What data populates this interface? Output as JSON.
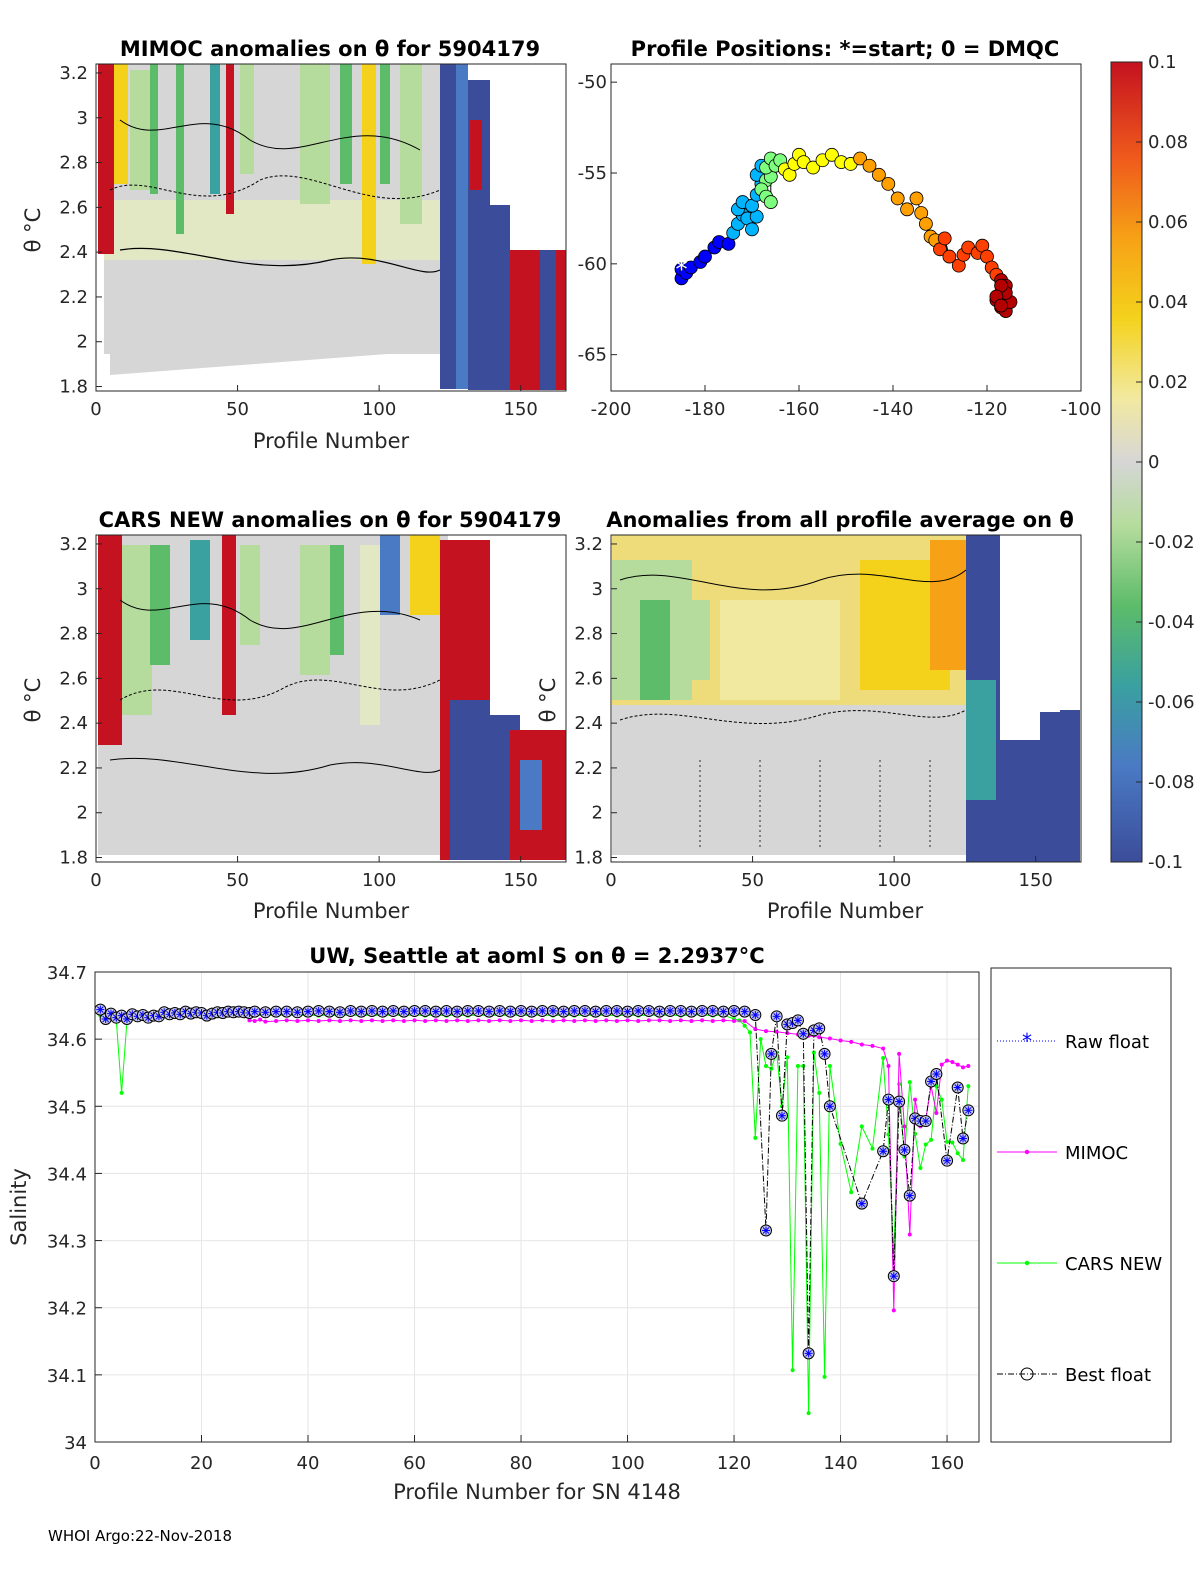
{
  "footer": "WHOI Argo:22-Nov-2018",
  "colors": {
    "raw": "#0000ff",
    "mimoc": "#ff00ff",
    "cars": "#00ff00",
    "best": "#000000",
    "grid": "#e6e6e6",
    "anom_neutral": "#d6d6d6"
  },
  "chart_data": [
    {
      "type": "heatmap",
      "id": "mimoc",
      "title": "MIMOC anomalies on θ  for 5904179",
      "xlabel": "Profile Number",
      "ylabel": "θ °C",
      "xlim": [
        0,
        166
      ],
      "ylim": [
        1.78,
        3.24
      ],
      "xticks": [
        "0",
        "50",
        "100",
        "150"
      ],
      "yticks": [
        "1.8",
        "2",
        "2.2",
        "2.4",
        "2.6",
        "2.8",
        "3",
        "3.2"
      ]
    },
    {
      "type": "scatter",
      "id": "positions",
      "title": "Profile Positions: *=start; 0 = DMQC",
      "xlim": [
        -200,
        -100
      ],
      "ylim": [
        -67,
        -49
      ],
      "xticks": [
        "-200",
        "-180",
        "-160",
        "-140",
        "-120",
        "-100"
      ],
      "yticks": [
        "-50",
        "-55",
        "-60",
        "-65"
      ],
      "lon": [
        -185,
        -185,
        -184,
        -183,
        -181,
        -180,
        -178,
        -177,
        -175,
        -174,
        -173,
        -172,
        -173,
        -172,
        -171,
        -170,
        -169,
        -170,
        -169,
        -168,
        -169,
        -168,
        -167,
        -168,
        -167,
        -166,
        -166,
        -167,
        -166,
        -165,
        -164,
        -163,
        -162,
        -161,
        -160,
        -159,
        -157,
        -155,
        -153,
        -151,
        -149,
        -147,
        -145,
        -143,
        -141,
        -139,
        -137,
        -135,
        -134,
        -133,
        -132,
        -131,
        -130,
        -129,
        -128,
        -126,
        -125,
        -124,
        -122,
        -121,
        -120,
        -119,
        -118,
        -117,
        -116,
        -117,
        -118,
        -117,
        -116,
        -115,
        -116,
        -117,
        -118,
        -117
      ],
      "lat": [
        -60.8,
        -60.3,
        -60.5,
        -60.2,
        -59.9,
        -59.6,
        -59.1,
        -58.8,
        -58.9,
        -58.3,
        -57.8,
        -57.3,
        -57.0,
        -56.6,
        -57.5,
        -58.1,
        -57.4,
        -56.8,
        -56.2,
        -55.6,
        -55.1,
        -54.6,
        -55.4,
        -55.9,
        -56.3,
        -56.6,
        -55.2,
        -54.7,
        -54.2,
        -54.6,
        -54.3,
        -54.8,
        -55.1,
        -54.5,
        -54.0,
        -54.4,
        -54.7,
        -54.3,
        -54.0,
        -54.4,
        -54.5,
        -54.2,
        -54.6,
        -55.1,
        -55.6,
        -56.4,
        -57.0,
        -56.4,
        -57.2,
        -57.8,
        -58.5,
        -58.7,
        -59.2,
        -58.6,
        -59.6,
        -60.1,
        -59.5,
        -59.1,
        -59.4,
        -59.0,
        -59.6,
        -60.2,
        -60.6,
        -60.9,
        -61.2,
        -61.6,
        -62.0,
        -62.4,
        -62.6,
        -62.1,
        -61.6,
        -61.2,
        -61.8,
        -62.3
      ],
      "colorbar": {
        "ticks": [
          "0.1",
          "0.08",
          "0.06",
          "0.04",
          "0.02",
          "0",
          "-0.02",
          "-0.04",
          "-0.06",
          "-0.08",
          "-0.1"
        ],
        "range": [
          -0.1,
          0.1
        ]
      }
    },
    {
      "type": "heatmap",
      "id": "cars",
      "title": "CARS NEW anomalies on θ for 5904179",
      "xlabel": "Profile Number",
      "ylabel": "θ °C",
      "xlim": [
        0,
        166
      ],
      "ylim": [
        1.78,
        3.24
      ],
      "xticks": [
        "0",
        "50",
        "100",
        "150"
      ],
      "yticks": [
        "1.8",
        "2",
        "2.2",
        "2.4",
        "2.6",
        "2.8",
        "3",
        "3.2"
      ]
    },
    {
      "type": "heatmap",
      "id": "allavg",
      "title": "Anomalies from all profile average on θ",
      "xlabel": "Profile Number",
      "ylabel": "θ °C",
      "xlim": [
        0,
        166
      ],
      "ylim": [
        1.78,
        3.24
      ],
      "xticks": [
        "0",
        "50",
        "100",
        "150"
      ],
      "yticks": [
        "1.8",
        "2",
        "2.2",
        "2.4",
        "2.6",
        "2.8",
        "3",
        "3.2"
      ]
    },
    {
      "type": "line",
      "id": "salinity",
      "title": "UW, Seattle at aoml S on θ = 2.2937°C",
      "xlabel": "Profile Number for SN 4148",
      "ylabel": "Salinity",
      "xlim": [
        0,
        166
      ],
      "ylim": [
        34,
        34.7
      ],
      "xticks": [
        "0",
        "20",
        "40",
        "60",
        "80",
        "100",
        "120",
        "140",
        "160"
      ],
      "yticks": [
        "34",
        "34.1",
        "34.2",
        "34.3",
        "34.4",
        "34.5",
        "34.6",
        "34.7"
      ],
      "legend": [
        "Raw float",
        "MIMOC",
        "CARS NEW",
        "Best float"
      ],
      "series": [
        {
          "name": "Best float",
          "x": [
            1,
            2,
            3,
            4,
            5,
            6,
            7,
            8,
            9,
            10,
            11,
            12,
            13,
            14,
            15,
            16,
            17,
            18,
            19,
            20,
            21,
            22,
            23,
            24,
            25,
            26,
            27,
            28,
            29,
            30,
            32,
            34,
            36,
            38,
            40,
            42,
            44,
            46,
            48,
            50,
            52,
            54,
            56,
            58,
            60,
            62,
            64,
            66,
            68,
            70,
            72,
            74,
            76,
            78,
            80,
            82,
            84,
            86,
            88,
            90,
            92,
            94,
            96,
            98,
            100,
            102,
            104,
            106,
            108,
            110,
            112,
            114,
            116,
            118,
            120,
            122,
            124,
            126,
            127,
            128,
            129,
            130,
            131,
            132,
            133,
            134,
            135,
            136,
            137,
            138,
            144,
            148,
            149,
            150,
            151,
            152,
            153,
            154,
            155,
            156,
            157,
            158,
            160,
            162,
            163,
            164
          ],
          "y": [
            34.644,
            34.63,
            34.638,
            34.632,
            34.635,
            34.63,
            34.637,
            34.634,
            34.636,
            34.632,
            34.635,
            34.634,
            34.64,
            34.637,
            34.639,
            34.637,
            34.641,
            34.638,
            34.64,
            34.639,
            34.635,
            34.638,
            34.64,
            34.639,
            34.641,
            34.64,
            34.641,
            34.64,
            34.639,
            34.641,
            34.64,
            34.641,
            34.641,
            34.64,
            34.641,
            34.642,
            34.641,
            34.64,
            34.642,
            34.641,
            34.642,
            34.641,
            34.642,
            34.641,
            34.642,
            34.642,
            34.641,
            34.642,
            34.641,
            34.642,
            34.642,
            34.641,
            34.642,
            34.641,
            34.642,
            34.641,
            34.642,
            34.642,
            34.641,
            34.642,
            34.642,
            34.641,
            34.642,
            34.642,
            34.641,
            34.642,
            34.642,
            34.641,
            34.642,
            34.642,
            34.641,
            34.642,
            34.642,
            34.641,
            34.642,
            34.641,
            34.636,
            34.315,
            34.578,
            34.634,
            34.486,
            34.622,
            34.624,
            34.628,
            34.608,
            34.132,
            34.613,
            34.616,
            34.578,
            34.5,
            34.355,
            34.433,
            34.51,
            34.247,
            34.507,
            34.435,
            34.367,
            34.482,
            34.478,
            34.478,
            34.537,
            34.548,
            34.419,
            34.528,
            34.452,
            34.494
          ]
        },
        {
          "name": "MIMOC",
          "x": [
            29,
            30,
            31,
            32,
            34,
            36,
            38,
            40,
            42,
            44,
            46,
            48,
            50,
            52,
            54,
            56,
            58,
            60,
            62,
            64,
            66,
            68,
            70,
            72,
            74,
            76,
            78,
            80,
            82,
            84,
            86,
            88,
            90,
            92,
            94,
            96,
            98,
            100,
            102,
            104,
            106,
            108,
            110,
            112,
            114,
            116,
            118,
            120,
            122,
            124,
            126,
            128,
            130,
            132,
            134,
            136,
            138,
            140,
            142,
            144,
            146,
            148,
            149,
            150,
            151,
            152,
            153,
            154,
            155,
            156,
            157,
            158,
            159,
            160,
            161,
            162,
            163,
            164
          ],
          "y": [
            34.628,
            34.627,
            34.629,
            34.626,
            34.627,
            34.628,
            34.627,
            34.628,
            34.627,
            34.628,
            34.627,
            34.628,
            34.627,
            34.628,
            34.627,
            34.628,
            34.627,
            34.628,
            34.627,
            34.628,
            34.627,
            34.628,
            34.627,
            34.628,
            34.627,
            34.628,
            34.627,
            34.628,
            34.627,
            34.628,
            34.627,
            34.628,
            34.627,
            34.628,
            34.627,
            34.628,
            34.627,
            34.628,
            34.627,
            34.628,
            34.628,
            34.627,
            34.628,
            34.627,
            34.628,
            34.627,
            34.628,
            34.627,
            34.627,
            34.615,
            34.612,
            34.611,
            34.609,
            34.607,
            34.605,
            34.603,
            34.601,
            34.598,
            34.596,
            34.592,
            34.59,
            34.586,
            34.56,
            34.196,
            34.578,
            34.47,
            34.309,
            34.51,
            34.47,
            34.48,
            34.53,
            34.49,
            34.562,
            34.568,
            34.566,
            34.562,
            34.558,
            34.56
          ]
        },
        {
          "name": "CARS NEW",
          "x": [
            1,
            2,
            3,
            4,
            5,
            6,
            7,
            8,
            9,
            10,
            11,
            12,
            14,
            16,
            18,
            20,
            22,
            24,
            26,
            28,
            30,
            32,
            34,
            36,
            38,
            40,
            42,
            44,
            46,
            48,
            50,
            52,
            54,
            56,
            58,
            60,
            62,
            64,
            66,
            68,
            70,
            72,
            74,
            76,
            78,
            80,
            82,
            84,
            86,
            88,
            90,
            92,
            94,
            96,
            98,
            100,
            102,
            104,
            106,
            108,
            110,
            112,
            114,
            116,
            118,
            120,
            121,
            122,
            123,
            124,
            125,
            126,
            127,
            128,
            129,
            130,
            131,
            132,
            133,
            134,
            135,
            136,
            137,
            138,
            140,
            142,
            144,
            146,
            148,
            149,
            150,
            151,
            152,
            153,
            154,
            155,
            156,
            157,
            158,
            159,
            160,
            161,
            162,
            163,
            164
          ],
          "y": [
            34.635,
            34.633,
            34.63,
            34.628,
            34.52,
            34.628,
            34.632,
            34.63,
            34.633,
            34.631,
            34.634,
            34.633,
            34.636,
            34.634,
            34.636,
            34.635,
            34.634,
            34.636,
            34.635,
            34.636,
            34.635,
            34.636,
            34.635,
            34.636,
            34.635,
            34.636,
            34.635,
            34.636,
            34.635,
            34.636,
            34.635,
            34.636,
            34.635,
            34.636,
            34.635,
            34.636,
            34.635,
            34.636,
            34.635,
            34.636,
            34.635,
            34.636,
            34.635,
            34.636,
            34.635,
            34.636,
            34.635,
            34.636,
            34.635,
            34.636,
            34.635,
            34.636,
            34.635,
            34.636,
            34.635,
            34.636,
            34.635,
            34.636,
            34.635,
            34.636,
            34.635,
            34.636,
            34.636,
            34.635,
            34.636,
            34.63,
            34.628,
            34.62,
            34.61,
            34.453,
            34.6,
            34.56,
            34.556,
            34.58,
            34.5,
            34.573,
            34.107,
            34.56,
            34.56,
            34.043,
            34.58,
            34.52,
            34.097,
            34.56,
            34.444,
            34.372,
            34.47,
            34.437,
            34.572,
            34.458,
            34.276,
            34.533,
            34.425,
            34.536,
            34.459,
            34.408,
            34.443,
            34.45,
            34.53,
            34.51,
            34.447,
            34.446,
            34.43,
            34.42,
            34.53
          ]
        }
      ]
    }
  ]
}
